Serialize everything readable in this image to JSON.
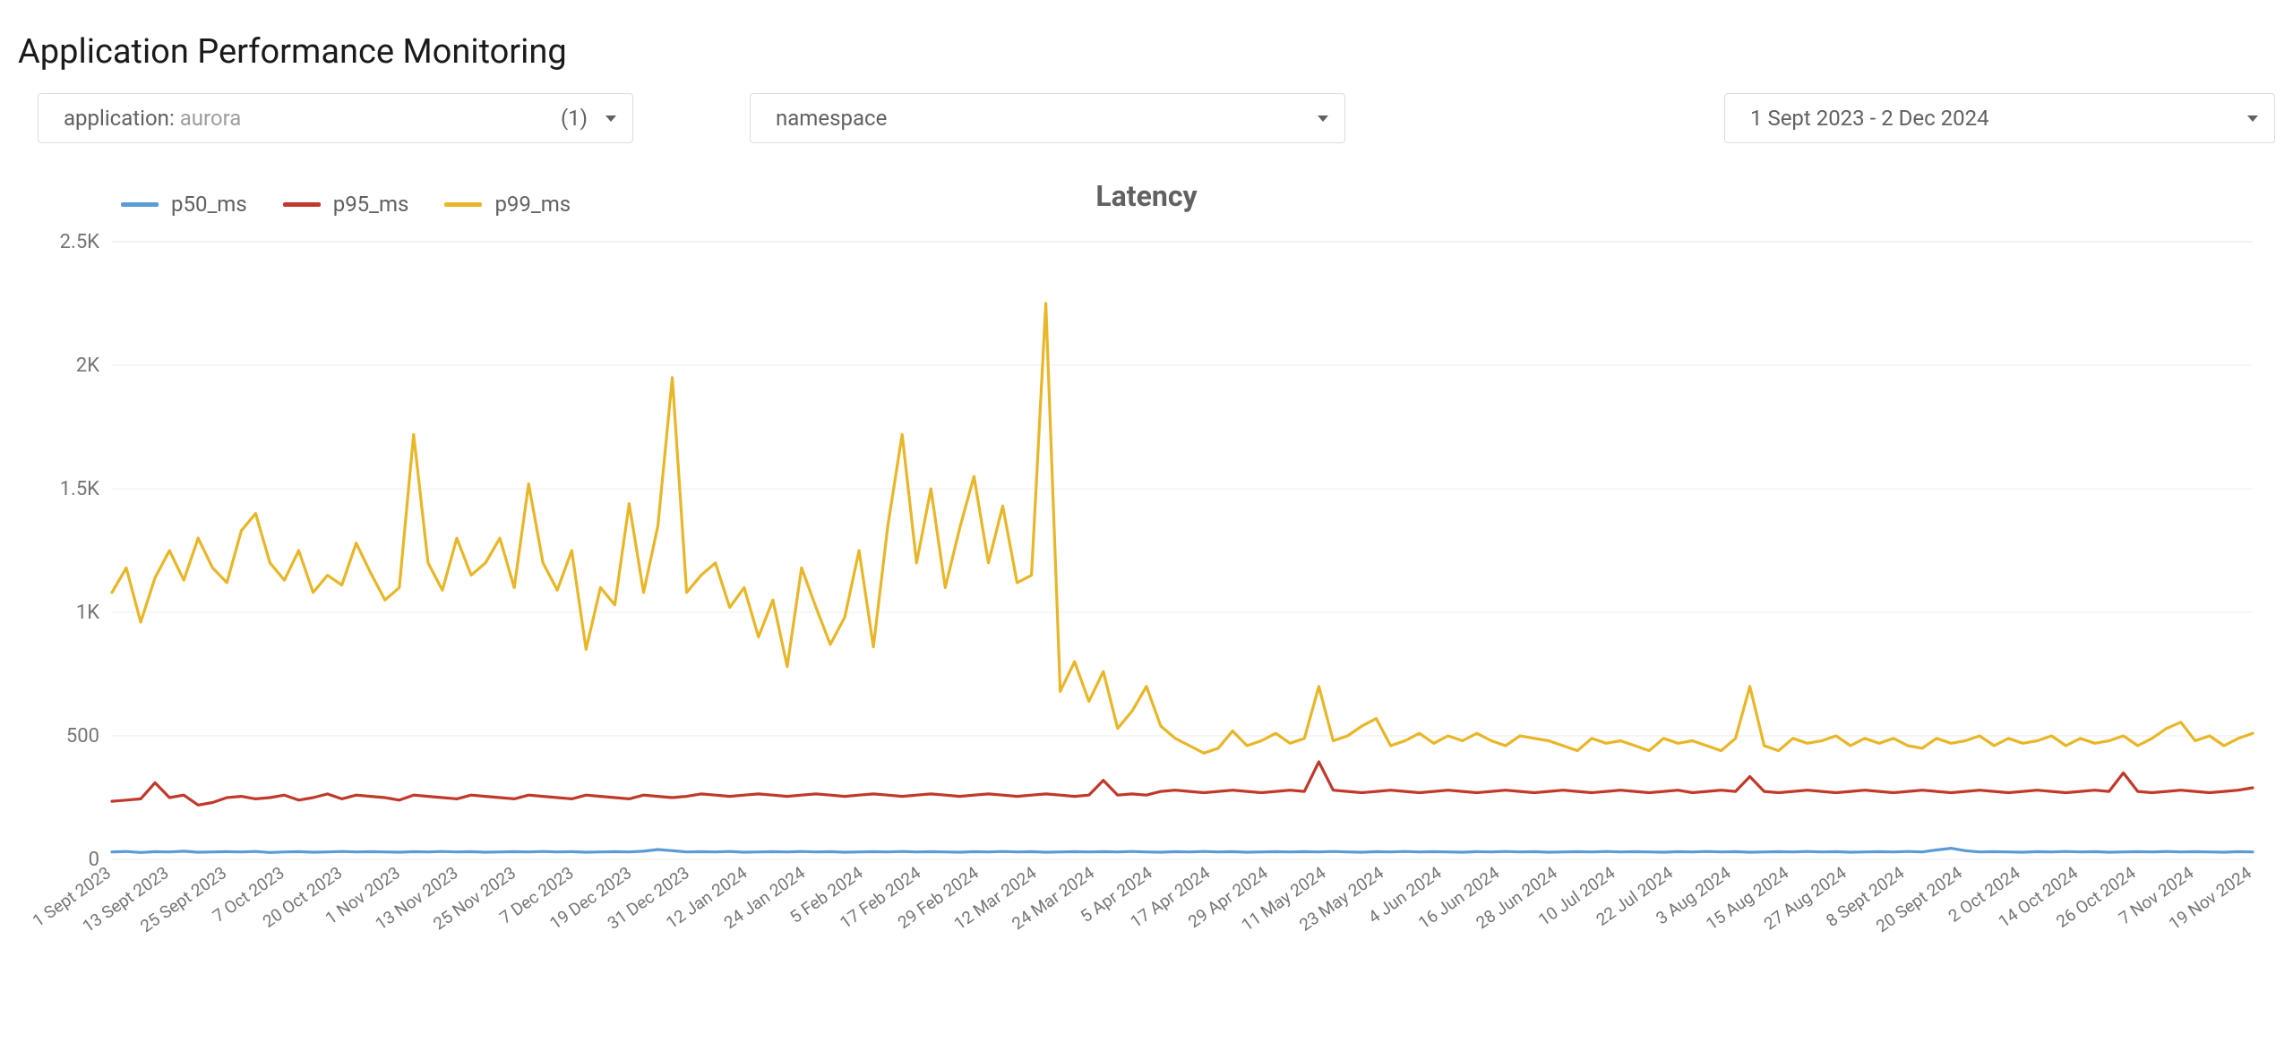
{
  "page_title": "Application Performance Monitoring",
  "filters": {
    "application": {
      "label_prefix": "application",
      "value": "aurora",
      "count": "(1)"
    },
    "namespace": {
      "label": "namespace"
    },
    "date_range": {
      "label": "1 Sept 2023 - 2 Dec 2024"
    }
  },
  "chart": {
    "title": "Latency",
    "type": "line",
    "background_color": "#ffffff",
    "grid_color": "#eeeeee",
    "title_fontsize": 32,
    "title_color": "#616161",
    "axis_label_color": "#757575",
    "y": {
      "min": 0,
      "max": 2500,
      "step": 500,
      "ticks": [
        "0",
        "500",
        "1K",
        "1.5K",
        "2K",
        "2.5K"
      ]
    },
    "x_labels": [
      "1 Sept 2023",
      "13 Sept 2023",
      "25 Sept 2023",
      "7 Oct 2023",
      "20 Oct 2023",
      "1 Nov 2023",
      "13 Nov 2023",
      "25 Nov 2023",
      "7 Dec 2023",
      "19 Dec 2023",
      "31 Dec 2023",
      "12 Jan 2024",
      "24 Jan 2024",
      "5 Feb 2024",
      "17 Feb 2024",
      "29 Feb 2024",
      "12 Mar 2024",
      "24 Mar 2024",
      "5 Apr 2024",
      "17 Apr 2024",
      "29 Apr 2024",
      "11 May 2024",
      "23 May 2024",
      "4 Jun 2024",
      "16 Jun 2024",
      "28 Jun 2024",
      "10 Jul 2024",
      "22 Jul 2024",
      "3 Aug 2024",
      "15 Aug 2024",
      "27 Aug 2024",
      "8 Sept 2024",
      "20 Sept 2024",
      "2 Oct 2024",
      "14 Oct 2024",
      "26 Oct 2024",
      "7 Nov 2024",
      "19 Nov 2024"
    ],
    "legend": [
      {
        "name": "p50_ms",
        "color": "#5b9bd5"
      },
      {
        "name": "p95_ms",
        "color": "#c0392b"
      },
      {
        "name": "p99_ms",
        "color": "#e8b627"
      }
    ],
    "series": {
      "p50_ms": {
        "color": "#5b9bd5",
        "line_width": 3.2,
        "values": [
          30,
          32,
          28,
          31,
          30,
          33,
          29,
          30,
          31,
          30,
          32,
          28,
          30,
          31,
          29,
          30,
          32,
          30,
          31,
          30,
          29,
          31,
          30,
          32,
          30,
          31,
          29,
          30,
          31,
          30,
          32,
          30,
          31,
          29,
          30,
          31,
          30,
          33,
          40,
          35,
          30,
          31,
          30,
          32,
          29,
          30,
          31,
          30,
          32,
          30,
          31,
          29,
          30,
          31,
          30,
          32,
          30,
          31,
          30,
          29,
          31,
          30,
          32,
          30,
          31,
          29,
          30,
          31,
          30,
          31,
          30,
          32,
          30,
          29,
          31,
          30,
          32,
          30,
          31,
          29,
          30,
          31,
          30,
          31,
          30,
          32,
          30,
          29,
          31,
          30,
          32,
          30,
          31,
          30,
          29,
          31,
          30,
          32,
          30,
          31,
          29,
          30,
          31,
          30,
          32,
          30,
          31,
          30,
          29,
          31,
          30,
          32,
          30,
          31,
          29,
          30,
          31,
          30,
          32,
          30,
          31,
          29,
          30,
          31,
          30,
          32,
          30,
          38,
          45,
          35,
          30,
          31,
          30,
          29,
          31,
          30,
          32,
          30,
          31,
          29,
          30,
          31,
          30,
          32,
          30,
          31,
          30,
          29,
          31,
          30
        ]
      },
      "p95_ms": {
        "color": "#c0392b",
        "line_width": 3.2,
        "values": [
          235,
          240,
          245,
          310,
          250,
          260,
          220,
          230,
          250,
          255,
          245,
          250,
          260,
          240,
          250,
          265,
          245,
          260,
          255,
          250,
          240,
          260,
          255,
          250,
          245,
          260,
          255,
          250,
          245,
          260,
          255,
          250,
          245,
          260,
          255,
          250,
          245,
          260,
          255,
          250,
          255,
          265,
          260,
          255,
          260,
          265,
          260,
          255,
          260,
          265,
          260,
          255,
          260,
          265,
          260,
          255,
          260,
          265,
          260,
          255,
          260,
          265,
          260,
          255,
          260,
          265,
          260,
          255,
          260,
          320,
          260,
          265,
          260,
          275,
          280,
          275,
          270,
          275,
          280,
          275,
          270,
          275,
          280,
          275,
          395,
          280,
          275,
          270,
          275,
          280,
          275,
          270,
          275,
          280,
          275,
          270,
          275,
          280,
          275,
          270,
          275,
          280,
          275,
          270,
          275,
          280,
          275,
          270,
          275,
          280,
          270,
          275,
          280,
          275,
          335,
          275,
          270,
          275,
          280,
          275,
          270,
          275,
          280,
          275,
          270,
          275,
          280,
          275,
          270,
          275,
          280,
          275,
          270,
          275,
          280,
          275,
          270,
          275,
          280,
          275,
          350,
          275,
          270,
          275,
          280,
          275,
          270,
          275,
          280,
          290
        ]
      },
      "p99_ms": {
        "color": "#e8b627",
        "line_width": 3.2,
        "values": [
          1080,
          1180,
          960,
          1140,
          1250,
          1130,
          1300,
          1180,
          1120,
          1330,
          1400,
          1200,
          1130,
          1250,
          1080,
          1150,
          1110,
          1280,
          1160,
          1050,
          1100,
          1720,
          1200,
          1090,
          1300,
          1150,
          1200,
          1300,
          1100,
          1520,
          1200,
          1090,
          1250,
          850,
          1100,
          1030,
          1440,
          1080,
          1350,
          1950,
          1080,
          1150,
          1200,
          1020,
          1100,
          900,
          1050,
          780,
          1180,
          1020,
          870,
          980,
          1250,
          860,
          1350,
          1720,
          1200,
          1500,
          1100,
          1340,
          1550,
          1200,
          1430,
          1120,
          1150,
          2250,
          680,
          800,
          640,
          760,
          530,
          600,
          700,
          540,
          490,
          460,
          430,
          450,
          520,
          460,
          480,
          510,
          470,
          490,
          700,
          480,
          500,
          540,
          570,
          460,
          480,
          510,
          470,
          500,
          480,
          510,
          480,
          460,
          500,
          490,
          480,
          460,
          440,
          490,
          470,
          480,
          460,
          440,
          490,
          470,
          480,
          460,
          440,
          490,
          700,
          460,
          440,
          490,
          470,
          480,
          500,
          460,
          490,
          470,
          490,
          460,
          450,
          490,
          470,
          480,
          500,
          460,
          490,
          470,
          480,
          500,
          460,
          490,
          470,
          480,
          500,
          460,
          490,
          530,
          555,
          480,
          500,
          460,
          490,
          510
        ]
      }
    }
  }
}
